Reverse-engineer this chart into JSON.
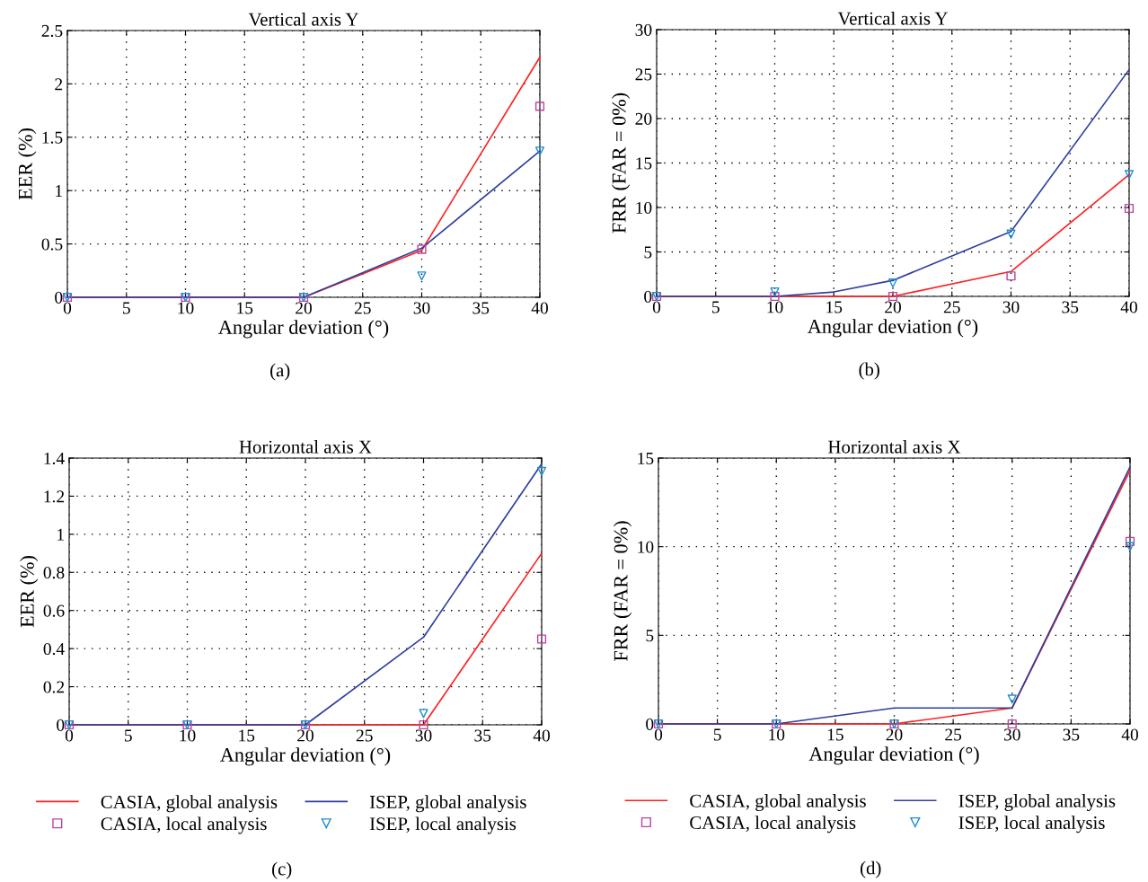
{
  "chart_data": [
    {
      "type": "line",
      "title": "Vertical axis Y",
      "xlabel": "Angular deviation (°)",
      "ylabel": "EER (%)",
      "xlim": [
        0,
        40
      ],
      "xticks": [
        0,
        5,
        10,
        15,
        20,
        25,
        30,
        35,
        40
      ],
      "ylim": [
        0,
        2.5
      ],
      "yticks": [
        0,
        {
          "value": 0.5,
          "label": "0.5"
        },
        1,
        {
          "value": 1.5,
          "label": "1.5"
        },
        2,
        {
          "value": 2.5,
          "label": "2.5"
        }
      ],
      "grid": true,
      "legend": false,
      "annotations": [
        "(a)"
      ],
      "series": [
        {
          "type": "line",
          "color": "#ff2020",
          "marker": "none",
          "x": [
            0,
            10,
            20,
            30,
            40
          ],
          "values": [
            0,
            0,
            0,
            0.44,
            2.25
          ]
        },
        {
          "type": "line",
          "color": "#2f3f9f",
          "marker": "none",
          "x": [
            0,
            10,
            20,
            30,
            40
          ],
          "values": [
            0,
            0,
            0,
            0.46,
            1.37
          ]
        },
        {
          "type": "scatter",
          "color": "#c040a0",
          "marker": "square",
          "x": [
            0,
            10,
            20,
            30,
            40
          ],
          "values": [
            0,
            0,
            0,
            0.45,
            1.79
          ]
        },
        {
          "type": "scatter",
          "color": "#1f8fcf",
          "marker": "triangle",
          "x": [
            0,
            10,
            20,
            30,
            40
          ],
          "values": [
            0,
            0,
            0,
            0.2,
            1.37
          ]
        }
      ]
    },
    {
      "type": "line",
      "title": "Vertical axis Y",
      "xlabel": "Angular deviation (°)",
      "ylabel": "FRR (FAR = 0%)",
      "xlim": [
        0,
        40
      ],
      "xticks": [
        0,
        5,
        10,
        15,
        20,
        25,
        30,
        35,
        40
      ],
      "ylim": [
        0,
        30
      ],
      "yticks": [
        0,
        5,
        10,
        15,
        20,
        25,
        30
      ],
      "grid": true,
      "legend": false,
      "annotations": [
        "(b)"
      ],
      "series": [
        {
          "type": "line",
          "color": "#ff2020",
          "marker": "none",
          "x": [
            0,
            10,
            20,
            30,
            40
          ],
          "values": [
            0,
            0,
            0,
            2.8,
            13.7
          ]
        },
        {
          "type": "line",
          "color": "#2f3f9f",
          "marker": "none",
          "x": [
            0,
            10,
            15,
            20,
            30,
            40
          ],
          "values": [
            0,
            0,
            0.5,
            1.8,
            7.3,
            25.5
          ]
        },
        {
          "type": "scatter",
          "color": "#c040a0",
          "marker": "square",
          "x": [
            0,
            10,
            20,
            30,
            40
          ],
          "values": [
            0,
            0,
            0,
            2.3,
            9.9
          ]
        },
        {
          "type": "scatter",
          "color": "#1f8fcf",
          "marker": "triangle",
          "x": [
            0,
            10,
            20,
            30,
            40
          ],
          "values": [
            0,
            0.5,
            1.5,
            7,
            13.7
          ]
        }
      ]
    },
    {
      "type": "line",
      "title": "Horizontal axis X",
      "xlabel": "Angular deviation (°)",
      "ylabel": "EER (%)",
      "xlim": [
        0,
        40
      ],
      "xticks": [
        0,
        5,
        10,
        15,
        20,
        25,
        30,
        35,
        40
      ],
      "ylim": [
        0,
        1.4
      ],
      "yticks": [
        0,
        {
          "value": 0.2,
          "label": "0.2"
        },
        {
          "value": 0.4,
          "label": "0.4"
        },
        {
          "value": 0.6,
          "label": "0.6"
        },
        {
          "value": 0.8,
          "label": "0.8"
        },
        1,
        {
          "value": 1.2,
          "label": "1.2"
        },
        {
          "value": 1.4,
          "label": "1.4"
        }
      ],
      "grid": true,
      "legend": "bottom",
      "annotations": [
        "(c)"
      ],
      "series": [
        {
          "name": "CASIA, global analysis",
          "type": "line",
          "color": "#ff2020",
          "marker": "none",
          "x": [
            0,
            10,
            20,
            30,
            40
          ],
          "values": [
            0,
            0,
            0,
            0,
            0.9
          ]
        },
        {
          "name": "ISEP, global analysis",
          "type": "line",
          "color": "#2f3f9f",
          "marker": "none",
          "x": [
            0,
            10,
            20,
            30,
            40
          ],
          "values": [
            0,
            0,
            0,
            0.46,
            1.37
          ]
        },
        {
          "name": "CASIA, local analysis",
          "type": "scatter",
          "color": "#c040a0",
          "marker": "square",
          "x": [
            0,
            10,
            20,
            30,
            40
          ],
          "values": [
            0,
            0,
            0,
            0,
            0.45
          ]
        },
        {
          "name": "ISEP, local analysis",
          "type": "scatter",
          "color": "#1f8fcf",
          "marker": "triangle",
          "x": [
            0,
            10,
            20,
            30,
            40
          ],
          "values": [
            0,
            0,
            0,
            0.06,
            1.33
          ]
        }
      ]
    },
    {
      "type": "line",
      "title": "Horizontal axis X",
      "xlabel": "Angular deviation (°)",
      "ylabel": "FRR (FAR = 0%)",
      "xlim": [
        0,
        40
      ],
      "xticks": [
        0,
        5,
        10,
        15,
        20,
        25,
        30,
        35,
        40
      ],
      "ylim": [
        0,
        15
      ],
      "yticks": [
        0,
        5,
        10,
        15
      ],
      "grid": true,
      "legend": "bottom",
      "annotations": [
        "(d)"
      ],
      "series": [
        {
          "name": "CASIA, global analysis",
          "type": "line",
          "color": "#ff2020",
          "marker": "none",
          "x": [
            0,
            10,
            20,
            30,
            40
          ],
          "values": [
            0,
            0,
            0,
            0.9,
            14.3
          ]
        },
        {
          "name": "ISEP, global analysis",
          "type": "line",
          "color": "#2f3f9f",
          "marker": "none",
          "x": [
            0,
            10,
            20,
            30,
            40
          ],
          "values": [
            0,
            0,
            0.9,
            0.9,
            14.5
          ]
        },
        {
          "name": "CASIA, local analysis",
          "type": "scatter",
          "color": "#c040a0",
          "marker": "square",
          "x": [
            0,
            10,
            20,
            30,
            40
          ],
          "values": [
            0,
            0,
            0,
            0,
            10.3
          ]
        },
        {
          "name": "ISEP, local analysis",
          "type": "scatter",
          "color": "#1f8fcf",
          "marker": "triangle",
          "x": [
            0,
            10,
            20,
            30,
            40
          ],
          "values": [
            0,
            0,
            0,
            1.4,
            10.0
          ]
        }
      ]
    }
  ]
}
